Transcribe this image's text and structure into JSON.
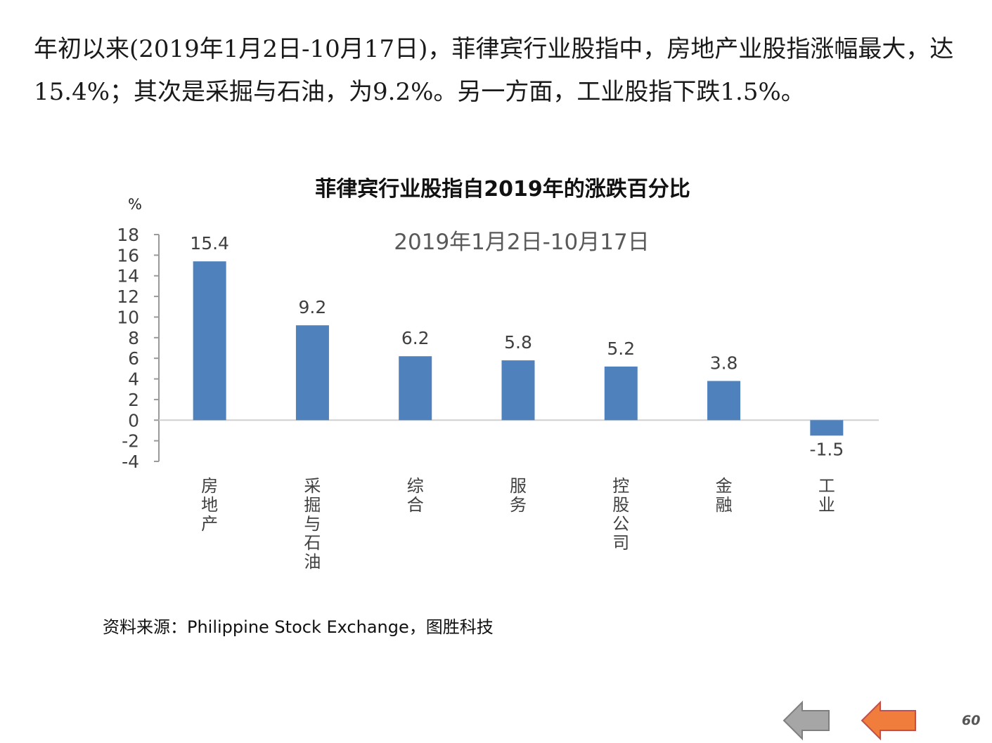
{
  "intro_text": "年初以来(2019年1月2日-10月17日)，菲律宾行业股指中，房地产业股指涨幅最大，达15.4%；其次是采掘与石油，为9.2%。另一方面，工业股指下跌1.5%。",
  "chart_data": {
    "type": "bar",
    "title": "菲律宾行业股指自2019年的涨跌百分比",
    "subtitle": "2019年1月2日-10月17日",
    "ylabel": "%",
    "categories": [
      "房地产",
      "采掘与石油",
      "综合",
      "服务",
      "控股公司",
      "金融",
      "工业"
    ],
    "values": [
      15.4,
      9.2,
      6.2,
      5.8,
      5.2,
      3.8,
      -1.5
    ],
    "data_labels": [
      "15.4",
      "9.2",
      "6.2",
      "5.8",
      "5.2",
      "3.8",
      "-1.5"
    ],
    "ylim": [
      -4,
      18
    ],
    "yticks": [
      18,
      16,
      14,
      12,
      10,
      8,
      6,
      4,
      2,
      0,
      -2,
      -4
    ],
    "grid": false,
    "bar_color": "#4f81bd"
  },
  "source_text": "资料来源：Philippine  Stock Exchange，图胜科技",
  "nav": {
    "back_color": "#a6a6a6",
    "next_color": "#f07d3c"
  },
  "page_number": "60"
}
